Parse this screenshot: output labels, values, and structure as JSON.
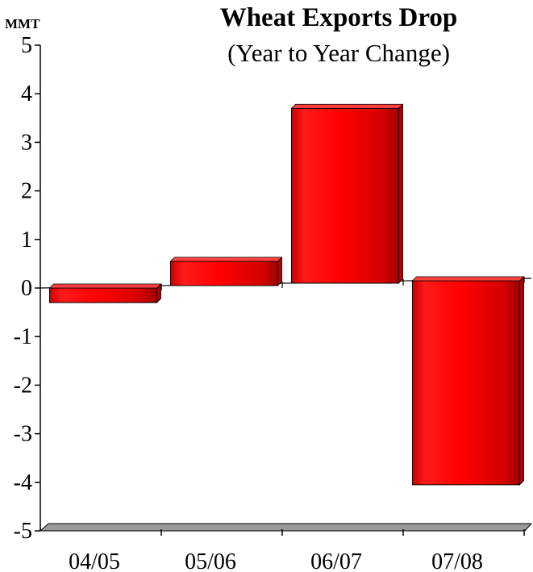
{
  "chart_data": {
    "type": "bar",
    "title": "Wheat Exports Drop",
    "subtitle": "(Year to Year Change)",
    "ylabel": "MMT",
    "xlabel": "",
    "categories": [
      "04/05",
      "05/06",
      "06/07",
      "07/08"
    ],
    "values": [
      -0.3,
      0.5,
      3.6,
      -4.2
    ],
    "ylim": [
      -5,
      5
    ],
    "yticks": [
      5,
      4,
      3,
      2,
      1,
      0,
      -1,
      -2,
      -3,
      -4,
      -5
    ],
    "grid": false,
    "legend": "none",
    "colors": {
      "bar": "#ff0000",
      "bar_dark": "#b00000",
      "bar_top": "#ff4040",
      "floor": "#9a9a9a"
    }
  }
}
